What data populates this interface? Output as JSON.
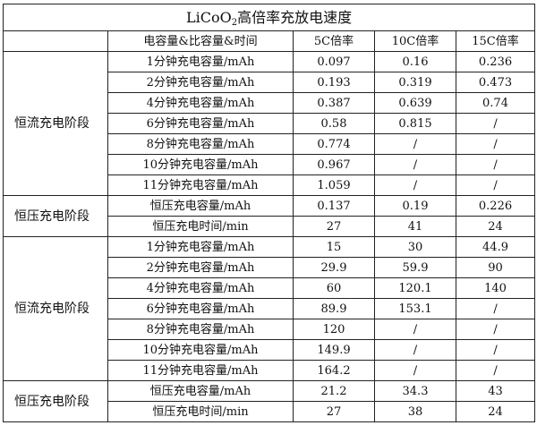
{
  "title": {
    "prefix": "LiCoO",
    "subscript": "2",
    "suffix": "高倍率充放电速度"
  },
  "header": {
    "metric": "电容量&比容量&时间",
    "col_5c": "5C倍率",
    "col_10c": "10C倍率",
    "col_15c": "15C倍率"
  },
  "sections": [
    {
      "stage": "恒流充电阶段",
      "rows": [
        {
          "label": "1分钟充电容量/mAh",
          "c5": "0.097",
          "c10": "0.16",
          "c15": "0.236"
        },
        {
          "label": "2分钟充电容量/mAh",
          "c5": "0.193",
          "c10": "0.319",
          "c15": "0.473"
        },
        {
          "label": "4分钟充电容量/mAh",
          "c5": "0.387",
          "c10": "0.639",
          "c15": "0.74"
        },
        {
          "label": "6分钟充电容量/mAh",
          "c5": "0.58",
          "c10": "0.815",
          "c15": "/"
        },
        {
          "label": "8分钟充电容量/mAh",
          "c5": "0.774",
          "c10": "/",
          "c15": "/"
        },
        {
          "label": "10分钟充电容量/mAh",
          "c5": "0.967",
          "c10": "/",
          "c15": "/"
        },
        {
          "label": "11分钟充电容量/mAh",
          "c5": "1.059",
          "c10": "/",
          "c15": "/"
        }
      ]
    },
    {
      "stage": "恒压充电阶段",
      "rows": [
        {
          "label": "恒压充电容量/mAh",
          "c5": "0.137",
          "c10": "0.19",
          "c15": "0.226"
        },
        {
          "label": "恒压充电时间/min",
          "c5": "27",
          "c10": "41",
          "c15": "24"
        }
      ]
    },
    {
      "stage": "恒流充电阶段",
      "rows": [
        {
          "label": "1分钟充电容量/mAh",
          "c5": "15",
          "c10": "30",
          "c15": "44.9"
        },
        {
          "label": "2分钟充电容量/mAh",
          "c5": "29.9",
          "c10": "59.9",
          "c15": "90"
        },
        {
          "label": "4分钟充电容量/mAh",
          "c5": "60",
          "c10": "120.1",
          "c15": "140"
        },
        {
          "label": "6分钟充电容量/mAh",
          "c5": "89.9",
          "c10": "153.1",
          "c15": "/"
        },
        {
          "label": "8分钟充电容量/mAh",
          "c5": "120",
          "c10": "/",
          "c15": "/"
        },
        {
          "label": "10分钟充电容量/mAh",
          "c5": "149.9",
          "c10": "/",
          "c15": "/"
        },
        {
          "label": "11分钟充电容量/mAh",
          "c5": "164.2",
          "c10": "/",
          "c15": "/"
        }
      ]
    },
    {
      "stage": "恒压充电阶段",
      "rows": [
        {
          "label": "恒压充电容量/mAh",
          "c5": "21.2",
          "c10": "34.3",
          "c15": "43"
        },
        {
          "label": "恒压充电时间/min",
          "c5": "27",
          "c10": "38",
          "c15": "24"
        }
      ]
    }
  ]
}
